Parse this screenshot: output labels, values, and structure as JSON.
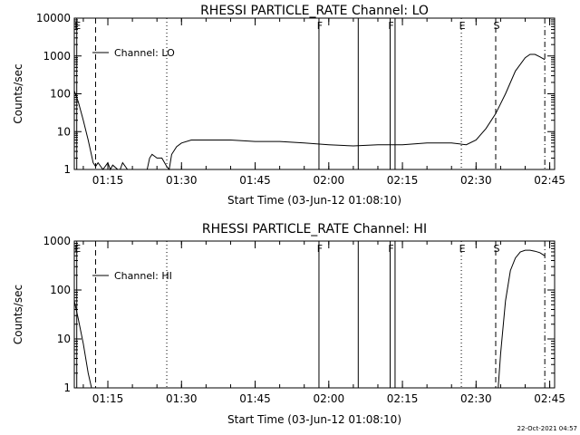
{
  "footer_timestamp": "22-Oct-2021 04:57",
  "chart_data": [
    {
      "type": "line",
      "title": "RHESSI PARTICLE_RATE Channel: LO",
      "xlabel": "Start Time (03-Jun-12 01:08:10)",
      "ylabel": "Counts/sec",
      "y_scale": "log",
      "xlim": [
        "01:08:10",
        "02:46:00"
      ],
      "ylim": [
        1,
        10000
      ],
      "x_tick_labels": [
        "01:15",
        "01:30",
        "01:45",
        "02:00",
        "02:15",
        "02:30",
        "02:45"
      ],
      "y_tick_labels": [
        "1",
        "10",
        "100",
        "1000",
        "10000"
      ],
      "legend": "top-left",
      "series": [
        {
          "name": "Channel: LO",
          "x": [
            "01:08:10",
            "01:09:00",
            "01:10:00",
            "01:11:00",
            "01:11:30",
            "01:12:00",
            "01:12:30",
            "01:13:00",
            "01:14:00",
            "01:15:00",
            "01:15:30",
            "01:16:00",
            "01:17:00",
            "01:17:30",
            "01:18:00",
            "01:19:00",
            "01:20:00",
            "01:21:00",
            "01:22:00",
            "01:23:00",
            "01:23:30",
            "01:24:00",
            "01:25:00",
            "01:26:00",
            "01:27:00",
            "01:27:30",
            "01:28:00",
            "01:29:00",
            "01:30:00",
            "01:32:00",
            "01:35:00",
            "01:40:00",
            "01:45:00",
            "01:50:00",
            "01:55:00",
            "02:00:00",
            "02:05:00",
            "02:10:00",
            "02:15:00",
            "02:20:00",
            "02:25:00",
            "02:28:00",
            "02:30:00",
            "02:32:00",
            "02:34:00",
            "02:36:00",
            "02:38:00",
            "02:40:00",
            "02:41:00",
            "02:42:00",
            "02:43:00",
            "02:44:00"
          ],
          "values": [
            120,
            60,
            20,
            6,
            3,
            1.5,
            1.2,
            1.5,
            1,
            1.5,
            1,
            1.3,
            1,
            1,
            1.5,
            1,
            1,
            1,
            1,
            1,
            2,
            2.5,
            2,
            2,
            1.2,
            1,
            2.5,
            4,
            5,
            6,
            6,
            6,
            5.5,
            5.5,
            5,
            4.5,
            4.2,
            4.5,
            4.5,
            5,
            5,
            4.5,
            6,
            12,
            30,
            100,
            400,
            900,
            1100,
            1100,
            950,
            800
          ]
        }
      ],
      "event_markers": [
        {
          "label": "E",
          "x": "01:08:40",
          "style": "solid"
        },
        {
          "label": "",
          "x": "01:12:30",
          "style": "dashed"
        },
        {
          "label": "",
          "x": "01:27:00",
          "style": "dotted"
        },
        {
          "label": "F",
          "x": "01:58:00",
          "style": "solid"
        },
        {
          "label": "",
          "x": "02:06:00",
          "style": "solid"
        },
        {
          "label": "F",
          "x": "02:12:30",
          "style": "solid"
        },
        {
          "label": "",
          "x": "02:13:30",
          "style": "solid"
        },
        {
          "label": "E",
          "x": "02:27:00",
          "style": "dotted"
        },
        {
          "label": "S",
          "x": "02:34:00",
          "style": "dashed"
        },
        {
          "label": "",
          "x": "02:44:00",
          "style": "dashdot"
        }
      ]
    },
    {
      "type": "line",
      "title": "RHESSI PARTICLE_RATE Channel: HI",
      "xlabel": "Start Time (03-Jun-12 01:08:10)",
      "ylabel": "Counts/sec",
      "y_scale": "log",
      "xlim": [
        "01:08:10",
        "02:46:00"
      ],
      "ylim": [
        1,
        1000
      ],
      "x_tick_labels": [
        "01:15",
        "01:30",
        "01:45",
        "02:00",
        "02:15",
        "02:30",
        "02:45"
      ],
      "y_tick_labels": [
        "1",
        "10",
        "100",
        "1000"
      ],
      "legend": "top-left",
      "series": [
        {
          "name": "Channel: HI",
          "x": [
            "01:08:10",
            "01:09:00",
            "01:10:00",
            "01:11:00",
            "01:11:40",
            "02:34:30",
            "02:35:00",
            "02:36:00",
            "02:37:00",
            "02:38:00",
            "02:39:00",
            "02:40:00",
            "02:41:00",
            "02:42:00",
            "02:43:00",
            "02:44:00"
          ],
          "values": [
            60,
            25,
            8,
            2,
            1,
            1,
            5,
            60,
            250,
            450,
            600,
            650,
            650,
            620,
            580,
            500
          ]
        }
      ],
      "event_markers": [
        {
          "label": "E",
          "x": "01:08:40",
          "style": "solid"
        },
        {
          "label": "",
          "x": "01:12:30",
          "style": "dashed"
        },
        {
          "label": "",
          "x": "01:27:00",
          "style": "dotted"
        },
        {
          "label": "F",
          "x": "01:58:00",
          "style": "solid"
        },
        {
          "label": "",
          "x": "02:06:00",
          "style": "solid"
        },
        {
          "label": "F",
          "x": "02:12:30",
          "style": "solid"
        },
        {
          "label": "",
          "x": "02:13:30",
          "style": "solid"
        },
        {
          "label": "E",
          "x": "02:27:00",
          "style": "dotted"
        },
        {
          "label": "S",
          "x": "02:34:00",
          "style": "dashed"
        },
        {
          "label": "",
          "x": "02:44:00",
          "style": "dashdot"
        }
      ]
    }
  ]
}
